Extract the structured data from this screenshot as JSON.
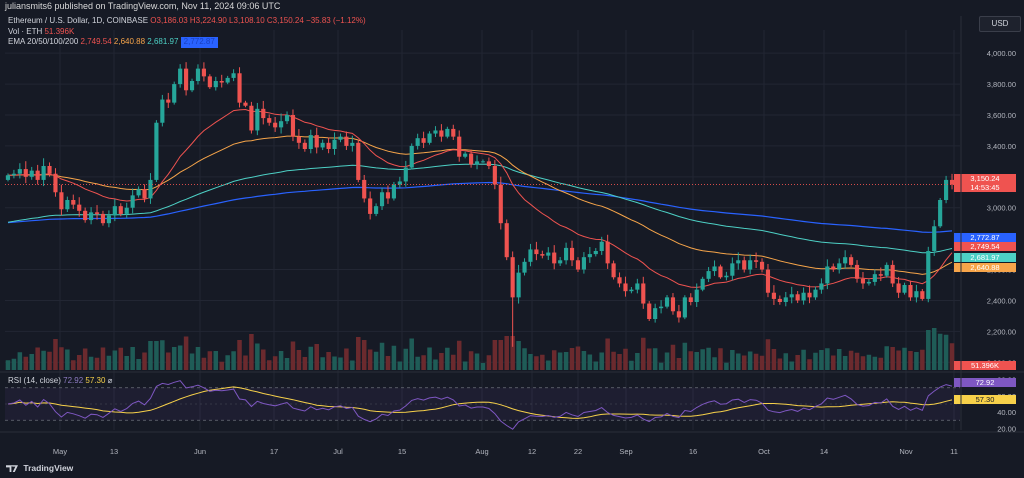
{
  "publisher": "juliansmits6 published on TradingView.com, Nov 11, 2024 09:06 UTC",
  "legend": {
    "symbol": "Ethereum / U.S. Dollar, 1D, COINBASE",
    "open": "O3,186.03",
    "high": "H3,224.90",
    "low": "L3,108.10",
    "close": "C3,150.24",
    "change": "−35.83 (−1.12%)",
    "vol_label": "Vol · ETH",
    "vol_value": "51.396K",
    "ema_label": "EMA 20/50/100/200",
    "ema20": "2,749.54",
    "ema50": "2,640.88",
    "ema100": "2,681.97",
    "ema200": "2,772.87"
  },
  "currency_button": "USD",
  "rsi_legend": {
    "label": "RSI (14, close)",
    "rsi": "72.92",
    "ma": "57.30",
    "symbol": "⌀"
  },
  "brand": "TradingView",
  "colors": {
    "up": "#26a69a",
    "down": "#ef5350",
    "ema20": "#ef5350",
    "ema50": "#f7a54a",
    "ema100": "#4dd0c5",
    "ema200": "#2962ff",
    "rsi": "#7e57c2",
    "rsi_ma": "#f7d14a"
  },
  "chart_data": {
    "type": "candlestick",
    "symbol": "Ethereum / U.S. Dollar",
    "interval": "1D",
    "ylim": [
      1950,
      4150
    ],
    "y_ticks": [
      "2,000.00",
      "2,200.00",
      "2,400.00",
      "2,600.00",
      "3,000.00",
      "3,200.00",
      "3,400.00",
      "3,600.00",
      "3,800.00",
      "4,000.00"
    ],
    "x_ticks": [
      "May",
      "13",
      "Jun",
      "17",
      "Jul",
      "15",
      "Aug",
      "12",
      "22",
      "Sep",
      "16",
      "Oct",
      "14",
      "Nov",
      "11"
    ],
    "price_labels": [
      {
        "text": "3,150.24",
        "color": "#ef5350",
        "value": 3150.24
      },
      {
        "text": "14:53:45",
        "color": "#ef5350",
        "value": 3150.24
      },
      {
        "text": "2,772.87",
        "color": "#2962ff",
        "value": 2772.87
      },
      {
        "text": "2,749.54",
        "color": "#ef5350",
        "value": 2749.54
      },
      {
        "text": "2,681.97",
        "color": "#4dd0c5",
        "value": 2681.97
      },
      {
        "text": "2,640.88",
        "color": "#f7a54a",
        "value": 2640.88
      }
    ],
    "volume_label": "51.396K",
    "close": [
      3210,
      3220,
      3250,
      3200,
      3240,
      3180,
      3270,
      3220,
      3100,
      2990,
      3050,
      3020,
      2980,
      2920,
      2970,
      2960,
      2900,
      2950,
      3010,
      2960,
      3000,
      3080,
      3120,
      3060,
      3180,
      3550,
      3700,
      3680,
      3800,
      3900,
      3760,
      3820,
      3900,
      3850,
      3780,
      3820,
      3810,
      3840,
      3870,
      3680,
      3660,
      3500,
      3640,
      3580,
      3550,
      3520,
      3560,
      3600,
      3460,
      3420,
      3380,
      3470,
      3390,
      3420,
      3380,
      3440,
      3460,
      3400,
      3420,
      3180,
      3060,
      2960,
      3010,
      3100,
      3060,
      3150,
      3170,
      3260,
      3400,
      3450,
      3420,
      3480,
      3500,
      3460,
      3510,
      3460,
      3330,
      3350,
      3280,
      3300,
      3300,
      3270,
      3150,
      2900,
      2680,
      2420,
      2580,
      2650,
      2730,
      2700,
      2690,
      2710,
      2640,
      2660,
      2740,
      2660,
      2600,
      2680,
      2700,
      2720,
      2780,
      2640,
      2550,
      2510,
      2460,
      2470,
      2510,
      2380,
      2280,
      2350,
      2360,
      2420,
      2330,
      2290,
      2420,
      2390,
      2470,
      2540,
      2590,
      2620,
      2550,
      2560,
      2640,
      2660,
      2600,
      2660,
      2650,
      2600,
      2450,
      2410,
      2390,
      2420,
      2440,
      2400,
      2450,
      2420,
      2470,
      2510,
      2620,
      2600,
      2640,
      2680,
      2630,
      2540,
      2510,
      2520,
      2570,
      2560,
      2630,
      2510,
      2450,
      2500,
      2420,
      2460,
      2410,
      2720,
      2880,
      3050,
      3180,
      3150
    ],
    "rsi": {
      "ylim": [
        18,
        82
      ],
      "ticks": [
        "80.00",
        "60.00",
        "40.00",
        "20.00"
      ],
      "bands": [
        70,
        30
      ],
      "last": 72.92,
      "ma_last": 57.3
    }
  }
}
